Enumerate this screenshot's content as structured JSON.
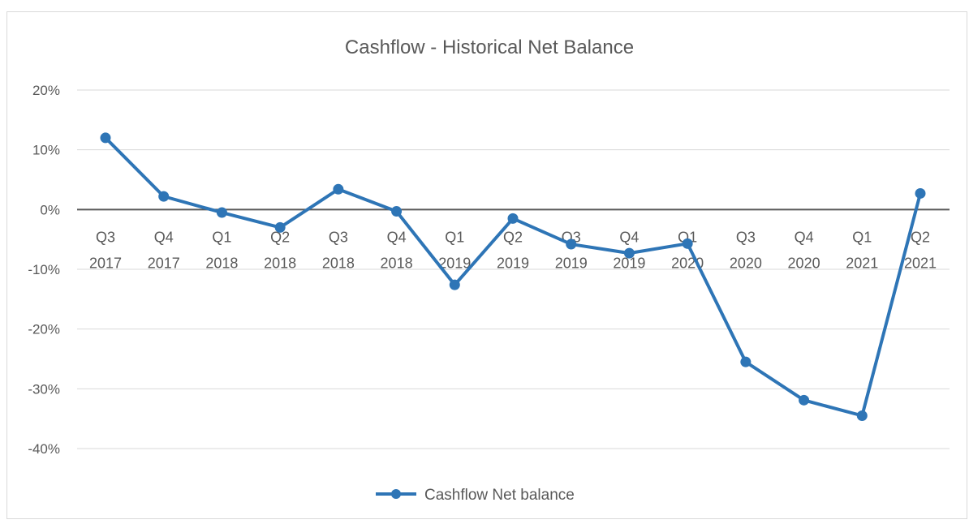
{
  "chart_data": {
    "type": "line",
    "title": "Cashflow - Historical Net Balance",
    "categories": [
      [
        "Q3",
        "2017"
      ],
      [
        "Q4",
        "2017"
      ],
      [
        "Q1",
        "2018"
      ],
      [
        "Q2",
        "2018"
      ],
      [
        "Q3",
        "2018"
      ],
      [
        "Q4",
        "2018"
      ],
      [
        "Q1",
        "2019"
      ],
      [
        "Q2",
        "2019"
      ],
      [
        "Q3",
        "2019"
      ],
      [
        "Q4",
        "2019"
      ],
      [
        "Q1",
        "2020"
      ],
      [
        "Q3",
        "2020"
      ],
      [
        "Q4",
        "2020"
      ],
      [
        "Q1",
        "2021"
      ],
      [
        "Q2",
        "2021"
      ]
    ],
    "series": [
      {
        "name": "Cashflow Net balance",
        "values": [
          12,
          2.2,
          -0.5,
          -3,
          3.4,
          -0.3,
          -12.6,
          -1.5,
          -5.8,
          -7.3,
          -5.7,
          -25.5,
          -31.9,
          -34.5,
          2.7
        ]
      }
    ],
    "y_ticks": [
      "20%",
      "10%",
      "0%",
      "-10%",
      "-20%",
      "-30%",
      "-40%"
    ],
    "ylim": [
      -40,
      20
    ],
    "y_unit": "%",
    "grid": true,
    "legend_position": "bottom",
    "colors": {
      "series": "#2e75b6",
      "grid": "#d9d9d9",
      "zero_line": "#595959",
      "text": "#595959"
    }
  }
}
